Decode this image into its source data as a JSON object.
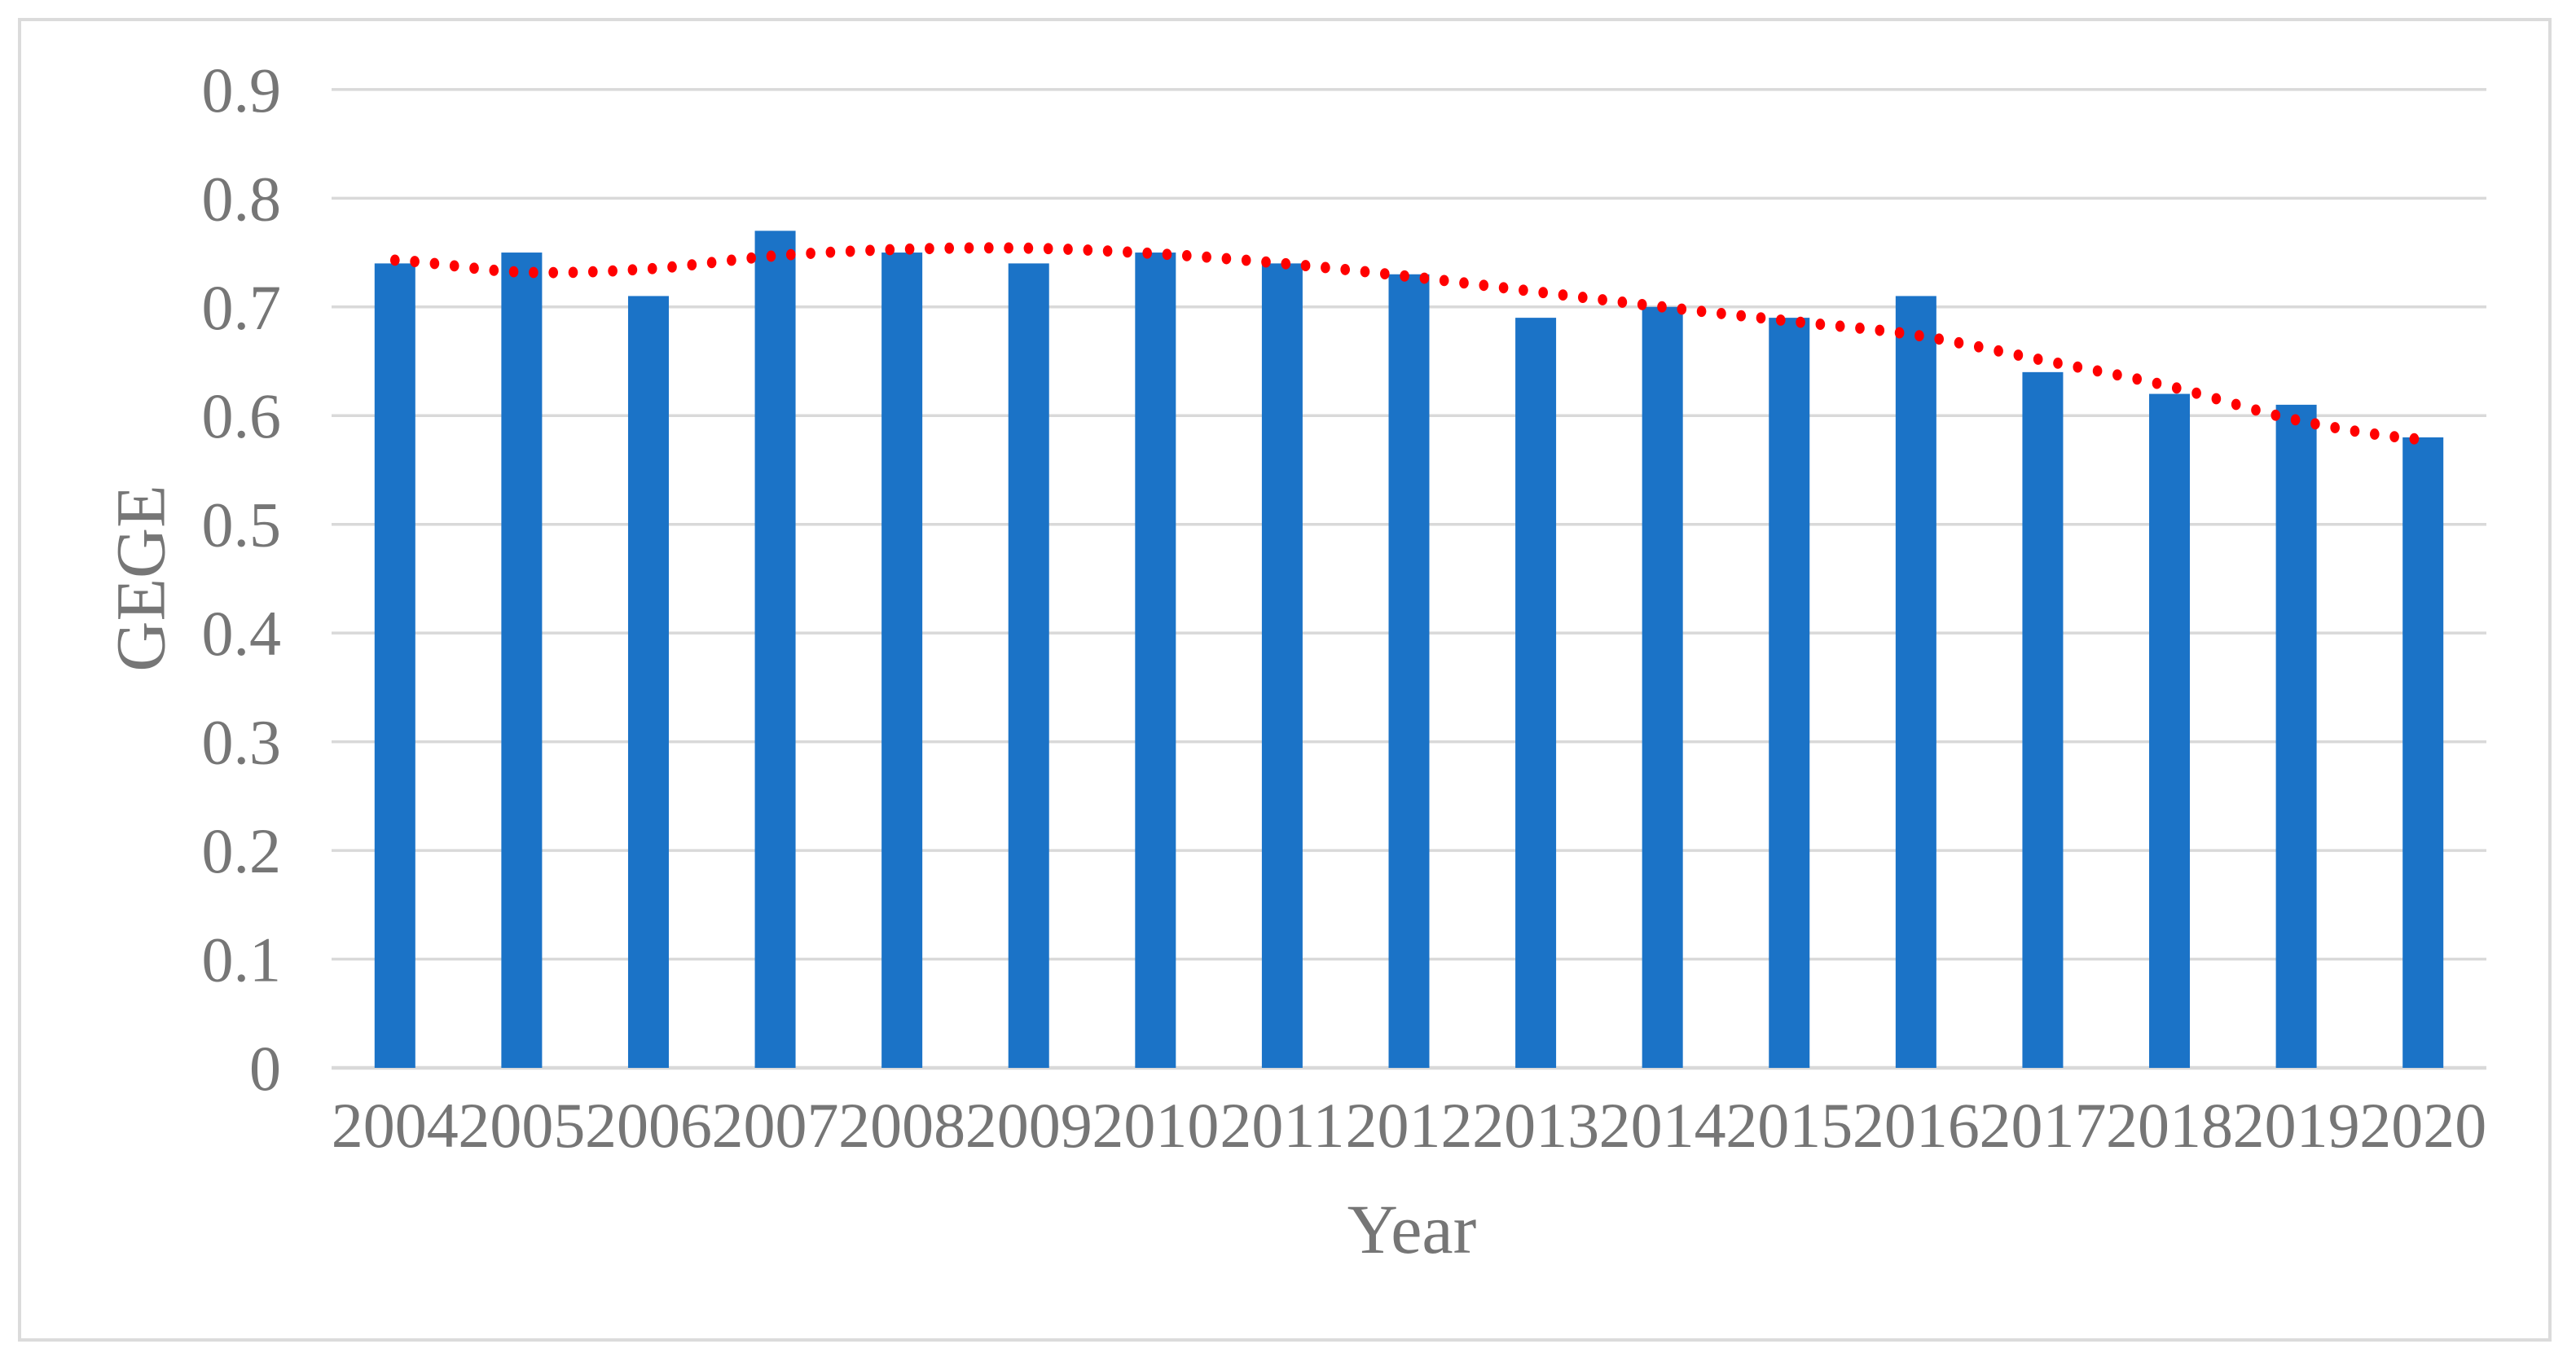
{
  "chart_data": {
    "type": "bar",
    "categories": [
      "2004",
      "2005",
      "2006",
      "2007",
      "2008",
      "2009",
      "2010",
      "2011",
      "2012",
      "2013",
      "2014",
      "2015",
      "2016",
      "2017",
      "2018",
      "2019",
      "2020"
    ],
    "series": [
      {
        "name": "GEGE",
        "type": "bar",
        "color": "#1B73C7",
        "values": [
          0.74,
          0.75,
          0.71,
          0.77,
          0.75,
          0.74,
          0.75,
          0.74,
          0.73,
          0.69,
          0.7,
          0.69,
          0.71,
          0.64,
          0.62,
          0.61,
          0.58
        ]
      },
      {
        "name": "polynomial-trendline",
        "type": "dotted-line",
        "color": "#FF0000",
        "values": [
          0.743,
          0.732,
          0.735,
          0.747,
          0.753,
          0.754,
          0.749,
          0.74,
          0.728,
          0.714,
          0.7,
          0.687,
          0.674,
          0.651,
          0.627,
          0.596,
          0.578
        ]
      }
    ],
    "xlabel": "Year",
    "ylabel": "GEGE",
    "ylim": [
      0,
      0.9
    ],
    "y_ticks": [
      "0",
      "0.1",
      "0.2",
      "0.3",
      "0.4",
      "0.5",
      "0.6",
      "0.7",
      "0.8",
      "0.9"
    ],
    "grid": "horizontal-only",
    "legend_position": "none",
    "colors": {
      "bar": "#1B73C7",
      "trendline": "#FF0000",
      "gridline": "#D9D9D9",
      "axis_text": "#767676",
      "frame_border": "#DBDBDB",
      "background": "#FFFFFF"
    }
  }
}
